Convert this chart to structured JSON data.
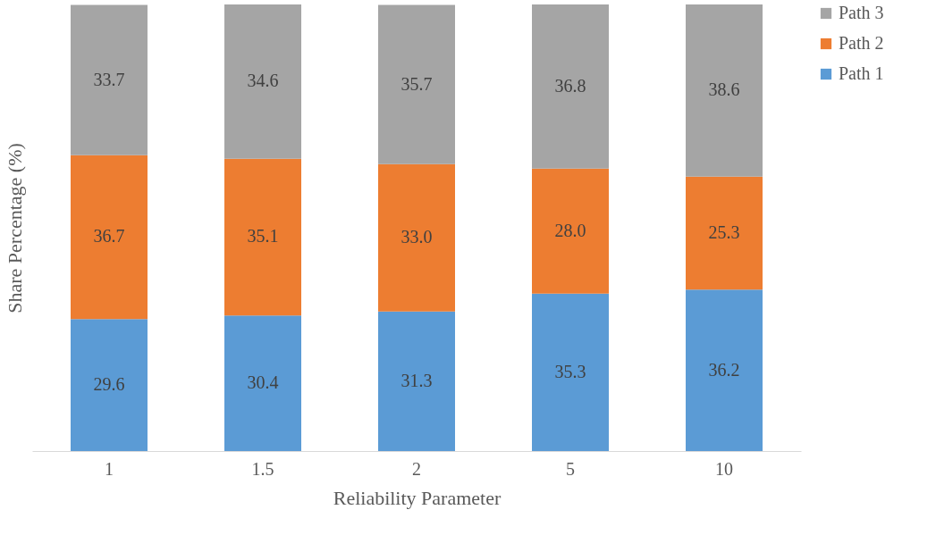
{
  "chart_data": {
    "type": "bar",
    "stacked": true,
    "xlabel": "Reliability Parameter",
    "ylabel": "Share Percentage (%)",
    "categories": [
      "1",
      "1.5",
      "2",
      "5",
      "10"
    ],
    "series": [
      {
        "name": "Path 1",
        "color": "#5b9bd5",
        "values": [
          29.6,
          30.4,
          31.3,
          35.3,
          36.2
        ],
        "value_labels": [
          "29.6",
          "30.4",
          "31.3",
          "35.3",
          "36.2"
        ]
      },
      {
        "name": "Path 2",
        "color": "#ed7d31",
        "values": [
          36.7,
          35.1,
          33.0,
          28.0,
          25.3
        ],
        "value_labels": [
          "36.7",
          "35.1",
          "33.0",
          "28.0",
          "25.3"
        ]
      },
      {
        "name": "Path 3",
        "color": "#a5a5a5",
        "values": [
          33.7,
          34.6,
          35.7,
          36.8,
          38.6
        ],
        "value_labels": [
          "33.7",
          "34.6",
          "35.7",
          "36.8",
          "38.6"
        ]
      }
    ],
    "legend": "right",
    "tick_labels": "x",
    "grid": false
  }
}
